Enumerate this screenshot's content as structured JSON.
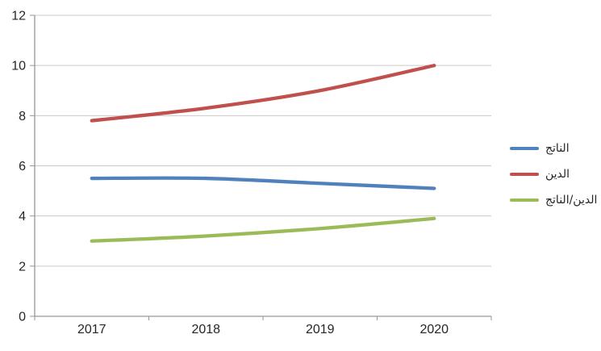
{
  "chart_data": {
    "type": "line",
    "title": "",
    "categories": [
      "2017",
      "2018",
      "2019",
      "2020"
    ],
    "series": [
      {
        "name": "الناتج",
        "color": "#4F81BD",
        "values": [
          5.5,
          5.5,
          5.3,
          5.1
        ]
      },
      {
        "name": "الدين",
        "color": "#C0504D",
        "values": [
          7.8,
          8.3,
          9.0,
          10.0
        ]
      },
      {
        "name": "الدين/الناتج",
        "color": "#9BBB59",
        "values": [
          3.0,
          3.2,
          3.5,
          3.9
        ]
      }
    ],
    "xlabel": "",
    "ylabel": "",
    "ylim": [
      0,
      12
    ],
    "yticks": [
      0,
      2,
      4,
      6,
      8,
      10,
      12
    ],
    "grid": true,
    "smooth_lines": true,
    "legend_position": "right"
  },
  "style": {
    "background_color": "#FFFFFF",
    "gridline_color": "#C9C9C9",
    "axis_color": "#969696",
    "text_color": "#262626",
    "line_width": 4.3
  }
}
